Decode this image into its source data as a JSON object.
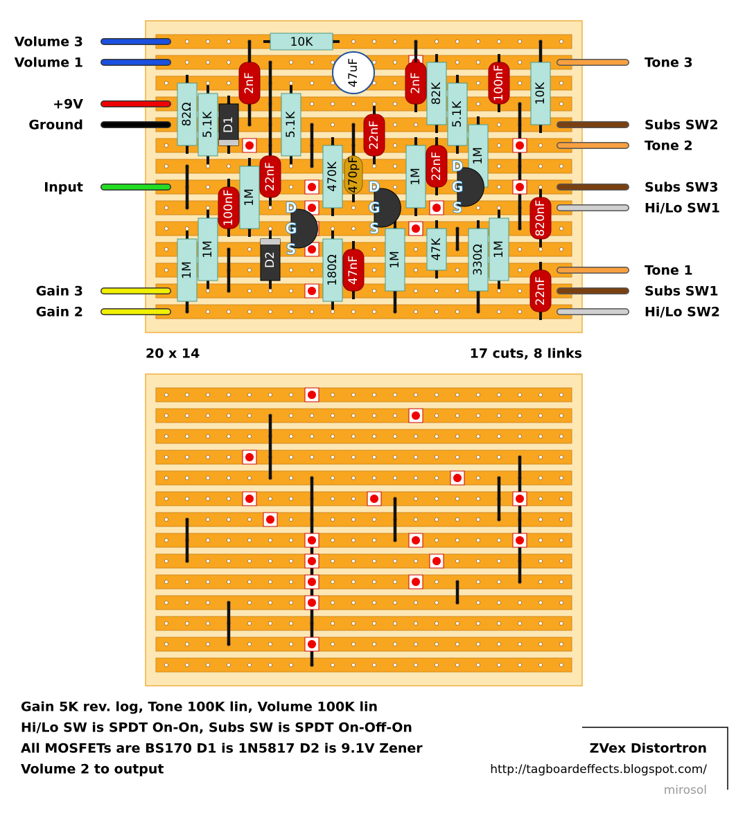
{
  "board_size": "20 x 14",
  "summary": "17 cuts, 8 links",
  "left_labels": [
    "Volume 3",
    "Volume 1",
    "+9V",
    "Ground",
    "Input",
    "Gain 3",
    "Gain 2"
  ],
  "right_labels": [
    "Tone 3",
    "Subs SW2",
    "Tone 2",
    "Subs SW3",
    "Hi/Lo SW1",
    "Tone 1",
    "Subs SW1",
    "Hi/Lo SW2"
  ],
  "components": [
    "10K",
    "82Ω",
    "5.1K",
    "D1",
    "2nF",
    "5.1K",
    "47uF",
    "22nF",
    "2nF",
    "82K",
    "5.1K",
    "100nF",
    "10K",
    "1M",
    "22nF",
    "100nF",
    "470K",
    "470pF",
    "1M",
    "22nF",
    "1M",
    "1M",
    "1M",
    "D2",
    "180Ω",
    "47nF",
    "1M",
    "47K",
    "330Ω",
    "1M",
    "820nF",
    "22nF"
  ],
  "transistors": [
    {
      "d": "D",
      "g": "G",
      "s": "S"
    },
    {
      "d": "D",
      "g": "G",
      "s": "S"
    },
    {
      "d": "D",
      "g": "G",
      "s": "S"
    }
  ],
  "notes": [
    "Gain 5K rev. log, Tone 100K lin, Volume 100K lin",
    "Hi/Lo SW is SPDT On-On, Subs SW is SPDT On-Off-On",
    "All MOSFETs are BS170   D1 is 1N5817 D2 is 9.1V Zener",
    "Volume 2 to output"
  ],
  "title": "ZVex Distortron",
  "url": "http://tagboardeffects.blogspot.com/",
  "author": "mirosol"
}
